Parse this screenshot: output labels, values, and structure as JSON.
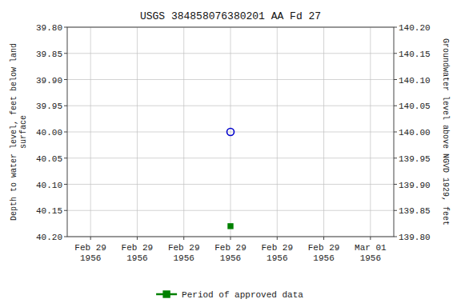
{
  "chart_data": {
    "type": "scatter",
    "title": "USGS 384858076380201 AA Fd  27",
    "y_label": "Depth to water level, feet below land\nsurface",
    "y2_label": "Groundwater level above NGVD 1929, feet",
    "categories": [
      "Feb 29\n1956",
      "Feb 29\n1956",
      "Feb 29\n1956",
      "Feb 29\n1956",
      "Feb 29\n1956",
      "Feb 29\n1956",
      "Mar 01\n1956"
    ],
    "series": [
      {
        "color": "#0000cc",
        "marker": "open-circle",
        "values": [
          null,
          null,
          null,
          40.0,
          null,
          null,
          null
        ]
      },
      {
        "name": "Period of approved data",
        "color": "#008000",
        "marker": "square",
        "values": [
          null,
          null,
          null,
          40.18,
          null,
          null,
          null
        ]
      }
    ],
    "ylim": [
      40.2,
      39.8
    ],
    "yticks": [
      {
        "value": 39.8,
        "label": "39.80"
      },
      {
        "value": 39.85,
        "label": "39.85"
      },
      {
        "value": 39.9,
        "label": "39.90"
      },
      {
        "value": 39.95,
        "label": "39.95"
      },
      {
        "value": 40.0,
        "label": "40.00"
      },
      {
        "value": 40.05,
        "label": "40.05"
      },
      {
        "value": 40.1,
        "label": "40.10"
      },
      {
        "value": 40.15,
        "label": "40.15"
      },
      {
        "value": 40.2,
        "label": "40.20"
      }
    ],
    "y2lim": [
      139.8,
      140.2
    ],
    "y2ticks": [
      {
        "value": 140.2,
        "label": "140.20"
      },
      {
        "value": 140.15,
        "label": "140.15"
      },
      {
        "value": 140.1,
        "label": "140.10"
      },
      {
        "value": 140.05,
        "label": "140.05"
      },
      {
        "value": 140.0,
        "label": "140.00"
      },
      {
        "value": 139.95,
        "label": "139.95"
      },
      {
        "value": 139.9,
        "label": "139.90"
      },
      {
        "value": 139.85,
        "label": "139.85"
      },
      {
        "value": 139.8,
        "label": "139.80"
      }
    ],
    "grid": true,
    "legend": "bottom"
  }
}
